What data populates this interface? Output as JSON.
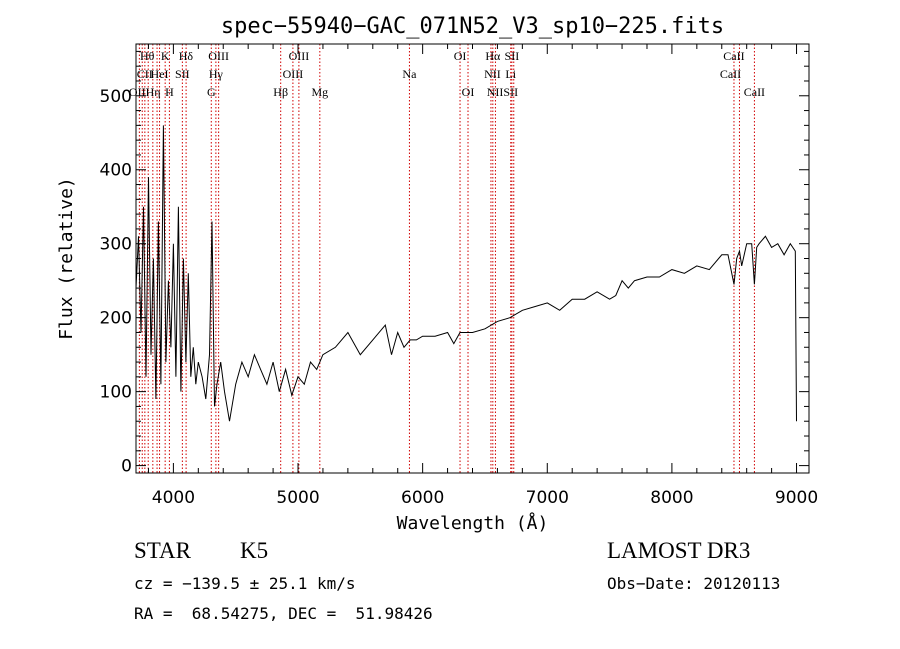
{
  "chart_data": {
    "type": "line",
    "title": "spec−55940−GAC_071N52_V3_sp10−225.fits",
    "xlabel": "Wavelength (Å)",
    "ylabel": "Flux (relative)",
    "xlim": [
      3700,
      9100
    ],
    "ylim": [
      -10,
      570
    ],
    "xticks": [
      4000,
      5000,
      6000,
      7000,
      8000,
      9000
    ],
    "xtick_labels": [
      "4000",
      "5000",
      "6000",
      "7000",
      "8000",
      "9000"
    ],
    "yticks": [
      0,
      100,
      200,
      300,
      400,
      500
    ],
    "ytick_labels": [
      "0",
      "100",
      "200",
      "300",
      "400",
      "500"
    ],
    "grid": false,
    "series": [
      {
        "name": "spectrum",
        "x": [
          3700,
          3720,
          3740,
          3760,
          3780,
          3800,
          3820,
          3840,
          3860,
          3880,
          3900,
          3920,
          3940,
          3960,
          3980,
          4000,
          4020,
          4040,
          4060,
          4080,
          4100,
          4120,
          4140,
          4160,
          4180,
          4200,
          4230,
          4260,
          4290,
          4310,
          4330,
          4350,
          4380,
          4410,
          4450,
          4500,
          4550,
          4600,
          4650,
          4700,
          4750,
          4800,
          4850,
          4900,
          4950,
          5000,
          5050,
          5100,
          5150,
          5200,
          5300,
          5400,
          5500,
          5600,
          5700,
          5750,
          5800,
          5850,
          5900,
          5950,
          6000,
          6100,
          6200,
          6250,
          6300,
          6400,
          6500,
          6600,
          6700,
          6800,
          6900,
          7000,
          7100,
          7200,
          7300,
          7400,
          7500,
          7550,
          7600,
          7650,
          7700,
          7800,
          7900,
          8000,
          8100,
          8200,
          8300,
          8400,
          8450,
          8498,
          8520,
          8542,
          8560,
          8600,
          8640,
          8662,
          8680,
          8700,
          8750,
          8800,
          8850,
          8900,
          8950,
          8990,
          9000
        ],
        "y": [
          240,
          310,
          180,
          350,
          120,
          390,
          150,
          280,
          90,
          330,
          110,
          460,
          140,
          250,
          160,
          300,
          120,
          350,
          100,
          280,
          140,
          260,
          120,
          160,
          110,
          140,
          120,
          90,
          150,
          330,
          80,
          110,
          140,
          100,
          60,
          110,
          140,
          120,
          150,
          130,
          110,
          140,
          100,
          130,
          95,
          120,
          110,
          140,
          130,
          150,
          160,
          180,
          150,
          170,
          190,
          150,
          180,
          160,
          170,
          170,
          175,
          175,
          180,
          165,
          180,
          180,
          185,
          195,
          200,
          210,
          215,
          220,
          210,
          225,
          225,
          235,
          225,
          230,
          250,
          240,
          250,
          255,
          255,
          265,
          260,
          270,
          265,
          285,
          285,
          245,
          280,
          290,
          270,
          300,
          300,
          245,
          295,
          300,
          310,
          295,
          300,
          285,
          300,
          290,
          60
        ]
      }
    ],
    "line_markers": [
      {
        "wavelength": 3727,
        "label": "OII"
      },
      {
        "wavelength": 3750,
        "label": "Hθ"
      },
      {
        "wavelength": 3771,
        "label": "Hη"
      },
      {
        "wavelength": 3798,
        "label": "Hθ"
      },
      {
        "wavelength": 3835,
        "label": "Hη"
      },
      {
        "wavelength": 3869,
        "label": "CII"
      },
      {
        "wavelength": 3889,
        "label": "HeI"
      },
      {
        "wavelength": 3934,
        "label": "K"
      },
      {
        "wavelength": 3968,
        "label": "H"
      },
      {
        "wavelength": 4072,
        "label": "SII"
      },
      {
        "wavelength": 4102,
        "label": "Hδ"
      },
      {
        "wavelength": 4304,
        "label": "G"
      },
      {
        "wavelength": 4341,
        "label": "Hγ"
      },
      {
        "wavelength": 4363,
        "label": "OIII"
      },
      {
        "wavelength": 4861,
        "label": "Hβ"
      },
      {
        "wavelength": 4959,
        "label": "OIII"
      },
      {
        "wavelength": 5007,
        "label": "OIII"
      },
      {
        "wavelength": 5175,
        "label": "Mg"
      },
      {
        "wavelength": 5894,
        "label": "Na"
      },
      {
        "wavelength": 6300,
        "label": "OI"
      },
      {
        "wavelength": 6364,
        "label": "OI"
      },
      {
        "wavelength": 6548,
        "label": "NII"
      },
      {
        "wavelength": 6563,
        "label": "Hα"
      },
      {
        "wavelength": 6584,
        "label": "NII"
      },
      {
        "wavelength": 6707,
        "label": "Li"
      },
      {
        "wavelength": 6716,
        "label": "SII"
      },
      {
        "wavelength": 6731,
        "label": "SII"
      },
      {
        "wavelength": 8498,
        "label": "CaII"
      },
      {
        "wavelength": 8542,
        "label": "CaII"
      },
      {
        "wavelength": 8662,
        "label": "CaII"
      }
    ],
    "line_labels": [
      {
        "text": "Hθ",
        "wavelength": 3790,
        "row": 1
      },
      {
        "text": "K",
        "wavelength": 3934,
        "row": 1
      },
      {
        "text": "Hδ",
        "wavelength": 4100,
        "row": 1
      },
      {
        "text": "OIII",
        "wavelength": 4363,
        "row": 1
      },
      {
        "text": "OIII",
        "wavelength": 5007,
        "row": 1
      },
      {
        "text": "OI",
        "wavelength": 6300,
        "row": 1
      },
      {
        "text": "Hα",
        "wavelength": 6563,
        "row": 1
      },
      {
        "text": "SII",
        "wavelength": 6716,
        "row": 1
      },
      {
        "text": "CaII",
        "wavelength": 8498,
        "row": 1
      },
      {
        "text": "CII",
        "wavelength": 3770,
        "row": 2
      },
      {
        "text": "HeI",
        "wavelength": 3889,
        "row": 2
      },
      {
        "text": "SII",
        "wavelength": 4072,
        "row": 2
      },
      {
        "text": "Hγ",
        "wavelength": 4341,
        "row": 2
      },
      {
        "text": "OIII",
        "wavelength": 4959,
        "row": 2
      },
      {
        "text": "Na",
        "wavelength": 5894,
        "row": 2
      },
      {
        "text": "NII",
        "wavelength": 6560,
        "row": 2
      },
      {
        "text": "Li",
        "wavelength": 6707,
        "row": 2
      },
      {
        "text": "CaII",
        "wavelength": 8470,
        "row": 2
      },
      {
        "text": "OIIHη",
        "wavelength": 3770,
        "row": 3
      },
      {
        "text": "H",
        "wavelength": 3968,
        "row": 3
      },
      {
        "text": "G",
        "wavelength": 4304,
        "row": 3
      },
      {
        "text": "Hβ",
        "wavelength": 4861,
        "row": 3
      },
      {
        "text": "Mg",
        "wavelength": 5175,
        "row": 3
      },
      {
        "text": "OI",
        "wavelength": 6364,
        "row": 3
      },
      {
        "text": "NIISII",
        "wavelength": 6640,
        "row": 3
      },
      {
        "text": "CaII",
        "wavelength": 8662,
        "row": 3
      }
    ]
  },
  "info": {
    "object_class": "STAR",
    "subclass": "K5",
    "survey": "LAMOST DR3",
    "cz_text": "cz = −139.5 ± 25.1 km/s",
    "obs_date_text": "Obs−Date: 20120113",
    "coords_text": "RA =  68.54275, DEC =  51.98426"
  },
  "colors": {
    "line": "#000000",
    "axis": "#000000",
    "marker": "#d00000",
    "background": "#ffffff"
  }
}
